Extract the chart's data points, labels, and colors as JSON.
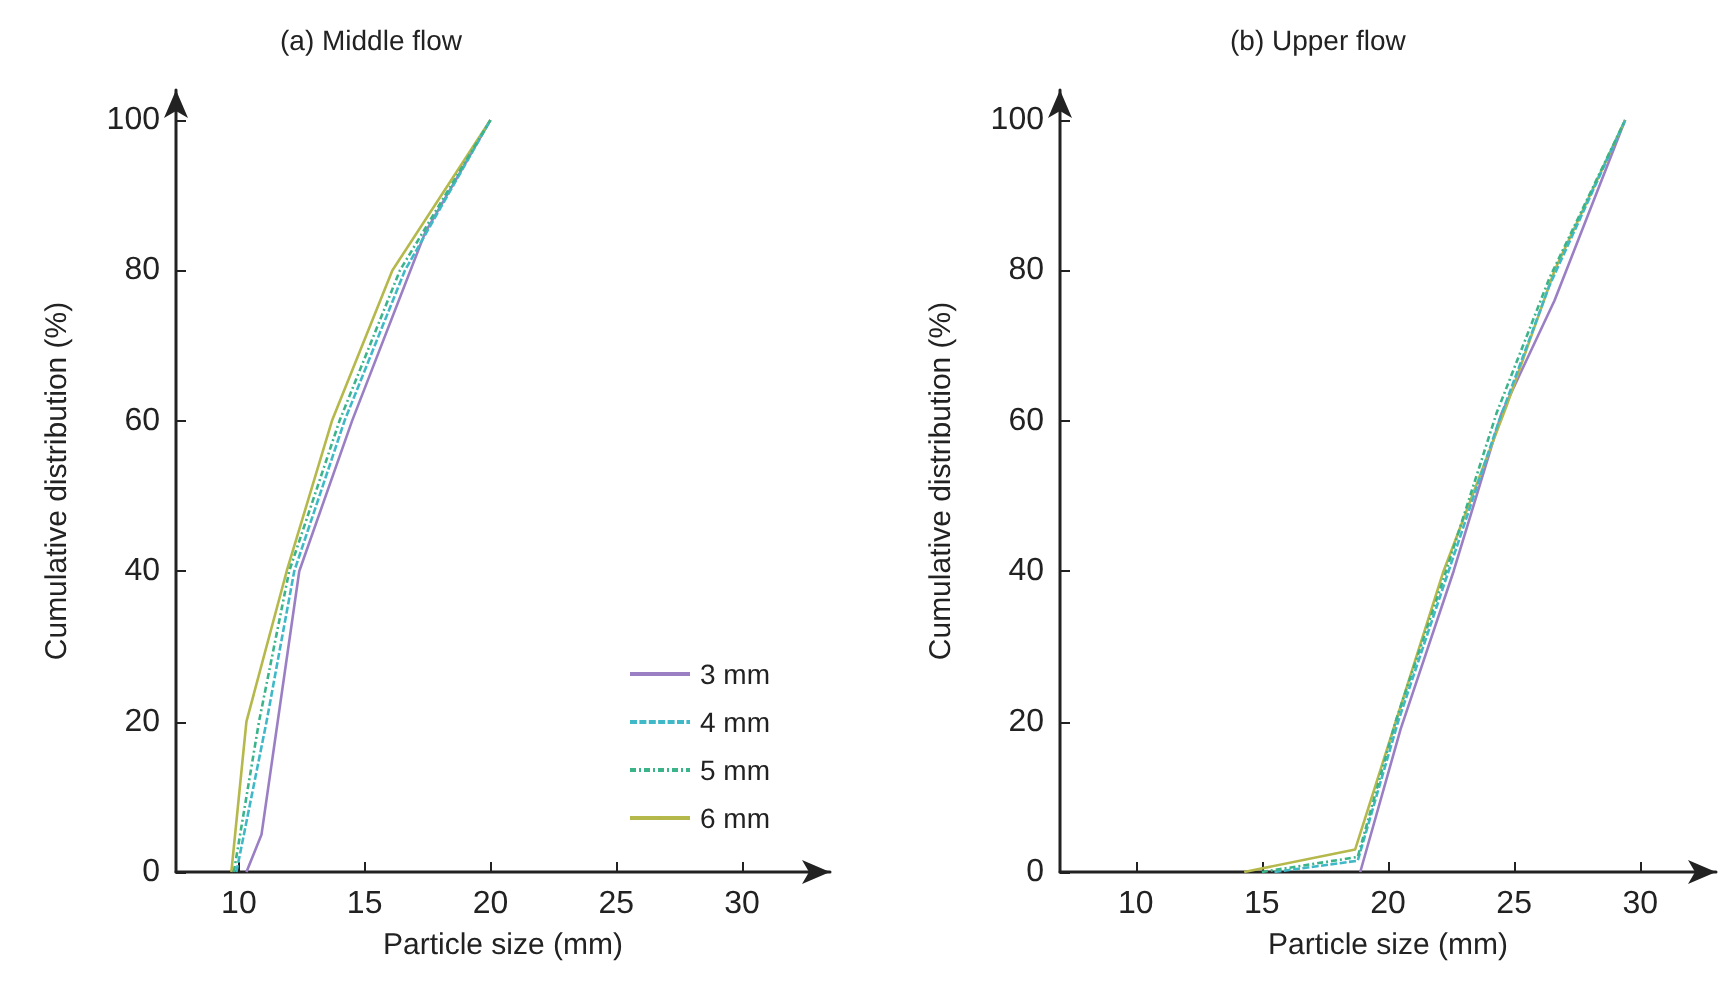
{
  "chart_data": [
    {
      "type": "line",
      "title": "(a) Middle flow",
      "xlabel": "Particle size (mm)",
      "ylabel": "Cumulative distribution (%)",
      "xlim": [
        7.5,
        33.5
      ],
      "xticks": [
        10,
        15,
        20,
        25,
        30
      ],
      "ylim": [
        0,
        104
      ],
      "yticks": [
        0,
        20,
        40,
        60,
        80,
        100
      ],
      "grid": false,
      "legend": "bottom right",
      "marker": "none",
      "series": [
        {
          "name": "3 mm",
          "color": "#9b7fc4",
          "line_style": "solid",
          "x": [
            10.3,
            10.9,
            12.4,
            14.5,
            17.4,
            20
          ],
          "values": [
            0,
            5,
            40,
            60,
            85,
            100
          ]
        },
        {
          "name": "4 mm",
          "color": "#3fb8c8",
          "line_style": "dashed",
          "x": [
            9.9,
            11.1,
            12.2,
            14.2,
            16.6,
            20
          ],
          "values": [
            0,
            20,
            40,
            60,
            80,
            100
          ]
        },
        {
          "name": "5 mm",
          "color": "#3cb48a",
          "line_style": "dotted",
          "x": [
            9.8,
            10.8,
            12,
            14,
            16.4,
            20
          ],
          "values": [
            0,
            20,
            40,
            60,
            80,
            100
          ]
        },
        {
          "name": "6 mm",
          "color": "#b5b84a",
          "line_style": "solid",
          "x": [
            9.7,
            10.3,
            11.9,
            13.7,
            16.1,
            20
          ],
          "values": [
            0,
            20,
            40,
            60,
            80,
            100
          ]
        }
      ]
    },
    {
      "type": "line",
      "title": "(b) Upper flow",
      "xlabel": "Particle size (mm)",
      "ylabel": "Cumulative distribution (%)",
      "xlim": [
        7,
        33
      ],
      "xticks": [
        10,
        15,
        20,
        25,
        30
      ],
      "ylim": [
        0,
        104
      ],
      "yticks": [
        0,
        20,
        40,
        60,
        80,
        100
      ],
      "grid": false,
      "legend": false,
      "marker": "none",
      "series": [
        {
          "color": "#9b7fc4",
          "line_style": "solid",
          "x": [
            18.9,
            20.5,
            22.6,
            24.5,
            26.6,
            29.4
          ],
          "values": [
            0,
            19,
            40,
            61,
            76,
            100
          ]
        },
        {
          "color": "#3fb8c8",
          "line_style": "dashed",
          "x": [
            15.5,
            18.8,
            20.4,
            22.4,
            24.4,
            26.4,
            29.4
          ],
          "values": [
            0,
            1.5,
            20,
            40,
            60,
            78,
            100
          ]
        },
        {
          "color": "#3cb48a",
          "line_style": "dotted",
          "x": [
            15,
            18.8,
            20.3,
            22.3,
            24.3,
            26.4,
            29.4
          ],
          "values": [
            0,
            2,
            20,
            40,
            61,
            79,
            100
          ]
        },
        {
          "color": "#b5b84a",
          "line_style": "solid",
          "x": [
            14.3,
            18.7,
            22.2,
            24.7,
            26.6,
            29.4
          ],
          "values": [
            0,
            3,
            40,
            62,
            80,
            100
          ]
        }
      ]
    }
  ]
}
